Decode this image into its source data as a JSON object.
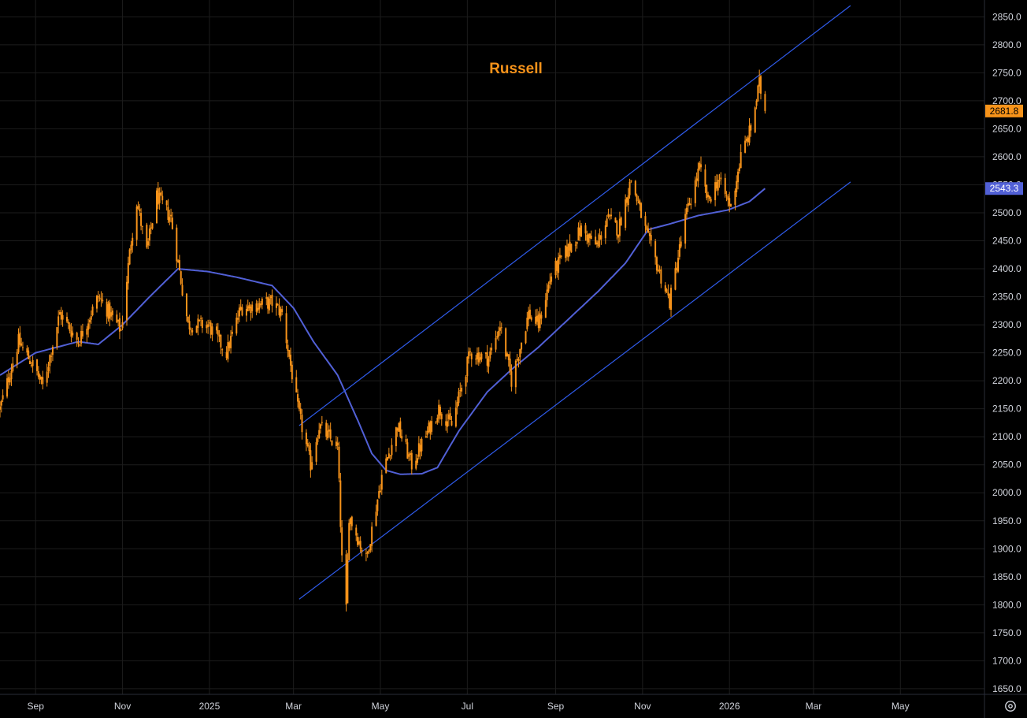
{
  "colors": {
    "background": "#000000",
    "grid": "#1c1c1c",
    "axis_text": "#d1d4dc",
    "candle": "#f7931a",
    "ma_line": "#5160d6",
    "channel": "#2f5bea",
    "last_price_tag": "#f7931a",
    "ma_price_tag": "#5160d6"
  },
  "icons": {
    "settings": "gear-icon"
  },
  "chart_data": {
    "type": "candlestick",
    "title": "Russell",
    "y_axis": {
      "position": "right",
      "range": [
        1640,
        2880
      ],
      "ticks": [
        1650,
        1700,
        1750,
        1800,
        1850,
        1900,
        1950,
        2000,
        2050,
        2100,
        2150,
        2200,
        2250,
        2300,
        2350,
        2400,
        2450,
        2500,
        2550,
        2600,
        2650,
        2700,
        2750,
        2800,
        2850
      ],
      "tick_labels": [
        "1650.0",
        "1700.0",
        "1750.0",
        "1800.0",
        "1850.0",
        "1900.0",
        "1950.0",
        "2000.0",
        "2050.0",
        "2100.0",
        "2150.0",
        "2200.0",
        "2250.0",
        "2300.0",
        "2350.0",
        "2400.0",
        "2450.0",
        "2500.0",
        "2550.0",
        "2600.0",
        "2650.0",
        "2700.0",
        "2750.0",
        "2800.0",
        "2850.0"
      ]
    },
    "x_axis": {
      "range": [
        "2024-08-07",
        "2026-06-29"
      ],
      "ticks": [
        {
          "date": "2024-09-01",
          "label": "Sep"
        },
        {
          "date": "2024-11-01",
          "label": "Nov"
        },
        {
          "date": "2025-01-01",
          "label": "2025"
        },
        {
          "date": "2025-03-01",
          "label": "Mar"
        },
        {
          "date": "2025-05-01",
          "label": "May"
        },
        {
          "date": "2025-07-01",
          "label": "Jul"
        },
        {
          "date": "2025-09-01",
          "label": "Sep"
        },
        {
          "date": "2025-11-01",
          "label": "Nov"
        },
        {
          "date": "2026-01-01",
          "label": "2026"
        },
        {
          "date": "2026-03-01",
          "label": "Mar"
        },
        {
          "date": "2026-05-01",
          "label": "May"
        }
      ]
    },
    "grid": true,
    "price_key_points": [
      [
        "2024-08-07",
        2150
      ],
      [
        "2024-08-20",
        2270
      ],
      [
        "2024-09-01",
        2220
      ],
      [
        "2024-09-06",
        2190
      ],
      [
        "2024-09-18",
        2320
      ],
      [
        "2024-10-01",
        2270
      ],
      [
        "2024-10-15",
        2350
      ],
      [
        "2024-10-31",
        2290
      ],
      [
        "2024-11-07",
        2450
      ],
      [
        "2024-11-11",
        2520
      ],
      [
        "2024-11-18",
        2430
      ],
      [
        "2024-11-25",
        2530
      ],
      [
        "2024-12-05",
        2490
      ],
      [
        "2024-12-17",
        2300
      ],
      [
        "2024-12-31",
        2300
      ],
      [
        "2025-01-13",
        2250
      ],
      [
        "2025-01-23",
        2330
      ],
      [
        "2025-02-14",
        2340
      ],
      [
        "2025-02-21",
        2320
      ],
      [
        "2025-03-04",
        2150
      ],
      [
        "2025-03-13",
        2050
      ],
      [
        "2025-03-19",
        2120
      ],
      [
        "2025-04-01",
        2080
      ],
      [
        "2025-04-04",
        1880
      ],
      [
        "2025-04-07",
        1790
      ],
      [
        "2025-04-09",
        1960
      ],
      [
        "2025-04-21",
        1880
      ],
      [
        "2025-05-02",
        2030
      ],
      [
        "2025-05-13",
        2120
      ],
      [
        "2025-05-23",
        2050
      ],
      [
        "2025-06-11",
        2150
      ],
      [
        "2025-06-20",
        2120
      ],
      [
        "2025-07-03",
        2250
      ],
      [
        "2025-07-16",
        2240
      ],
      [
        "2025-07-24",
        2300
      ],
      [
        "2025-08-01",
        2200
      ],
      [
        "2025-08-13",
        2320
      ],
      [
        "2025-08-20",
        2300
      ],
      [
        "2025-08-29",
        2390
      ],
      [
        "2025-09-19",
        2470
      ],
      [
        "2025-09-30",
        2440
      ],
      [
        "2025-10-07",
        2490
      ],
      [
        "2025-10-15",
        2470
      ],
      [
        "2025-10-24",
        2560
      ],
      [
        "2025-11-04",
        2460
      ],
      [
        "2025-11-20",
        2340
      ],
      [
        "2025-12-01",
        2490
      ],
      [
        "2025-12-11",
        2580
      ],
      [
        "2025-12-17",
        2520
      ],
      [
        "2025-12-24",
        2560
      ],
      [
        "2026-01-02",
        2510
      ],
      [
        "2026-01-09",
        2600
      ],
      [
        "2026-01-16",
        2650
      ],
      [
        "2026-01-22",
        2730
      ],
      [
        "2026-01-26",
        2681.8
      ]
    ],
    "moving_average_key_points": [
      [
        "2024-08-07",
        2210
      ],
      [
        "2024-09-01",
        2250
      ],
      [
        "2024-10-01",
        2270
      ],
      [
        "2024-10-15",
        2265
      ],
      [
        "2024-11-01",
        2300
      ],
      [
        "2024-11-20",
        2350
      ],
      [
        "2024-12-10",
        2400
      ],
      [
        "2024-12-31",
        2395
      ],
      [
        "2025-01-20",
        2385
      ],
      [
        "2025-02-14",
        2370
      ],
      [
        "2025-03-01",
        2330
      ],
      [
        "2025-03-15",
        2270
      ],
      [
        "2025-04-01",
        2210
      ],
      [
        "2025-04-15",
        2130
      ],
      [
        "2025-04-25",
        2070
      ],
      [
        "2025-05-05",
        2040
      ],
      [
        "2025-05-15",
        2033
      ],
      [
        "2025-05-30",
        2034
      ],
      [
        "2025-06-10",
        2045
      ],
      [
        "2025-06-25",
        2110
      ],
      [
        "2025-07-15",
        2180
      ],
      [
        "2025-08-01",
        2220
      ],
      [
        "2025-08-20",
        2260
      ],
      [
        "2025-09-10",
        2310
      ],
      [
        "2025-10-01",
        2360
      ],
      [
        "2025-10-20",
        2410
      ],
      [
        "2025-11-05",
        2470
      ],
      [
        "2025-11-20",
        2480
      ],
      [
        "2025-12-10",
        2495
      ],
      [
        "2025-12-31",
        2505
      ],
      [
        "2026-01-15",
        2520
      ],
      [
        "2026-01-26",
        2543.3
      ]
    ],
    "channel_lines": [
      {
        "name": "upper",
        "start": [
          "2025-03-05",
          2120
        ],
        "end": [
          "2026-03-27",
          2870
        ]
      },
      {
        "name": "lower",
        "start": [
          "2025-03-05",
          1810
        ],
        "end": [
          "2026-03-27",
          2555
        ]
      }
    ],
    "last_price_label": "2681.8",
    "last_price": 2681.8,
    "ma_last_label": "2543.3",
    "ma_last": 2543.3
  }
}
